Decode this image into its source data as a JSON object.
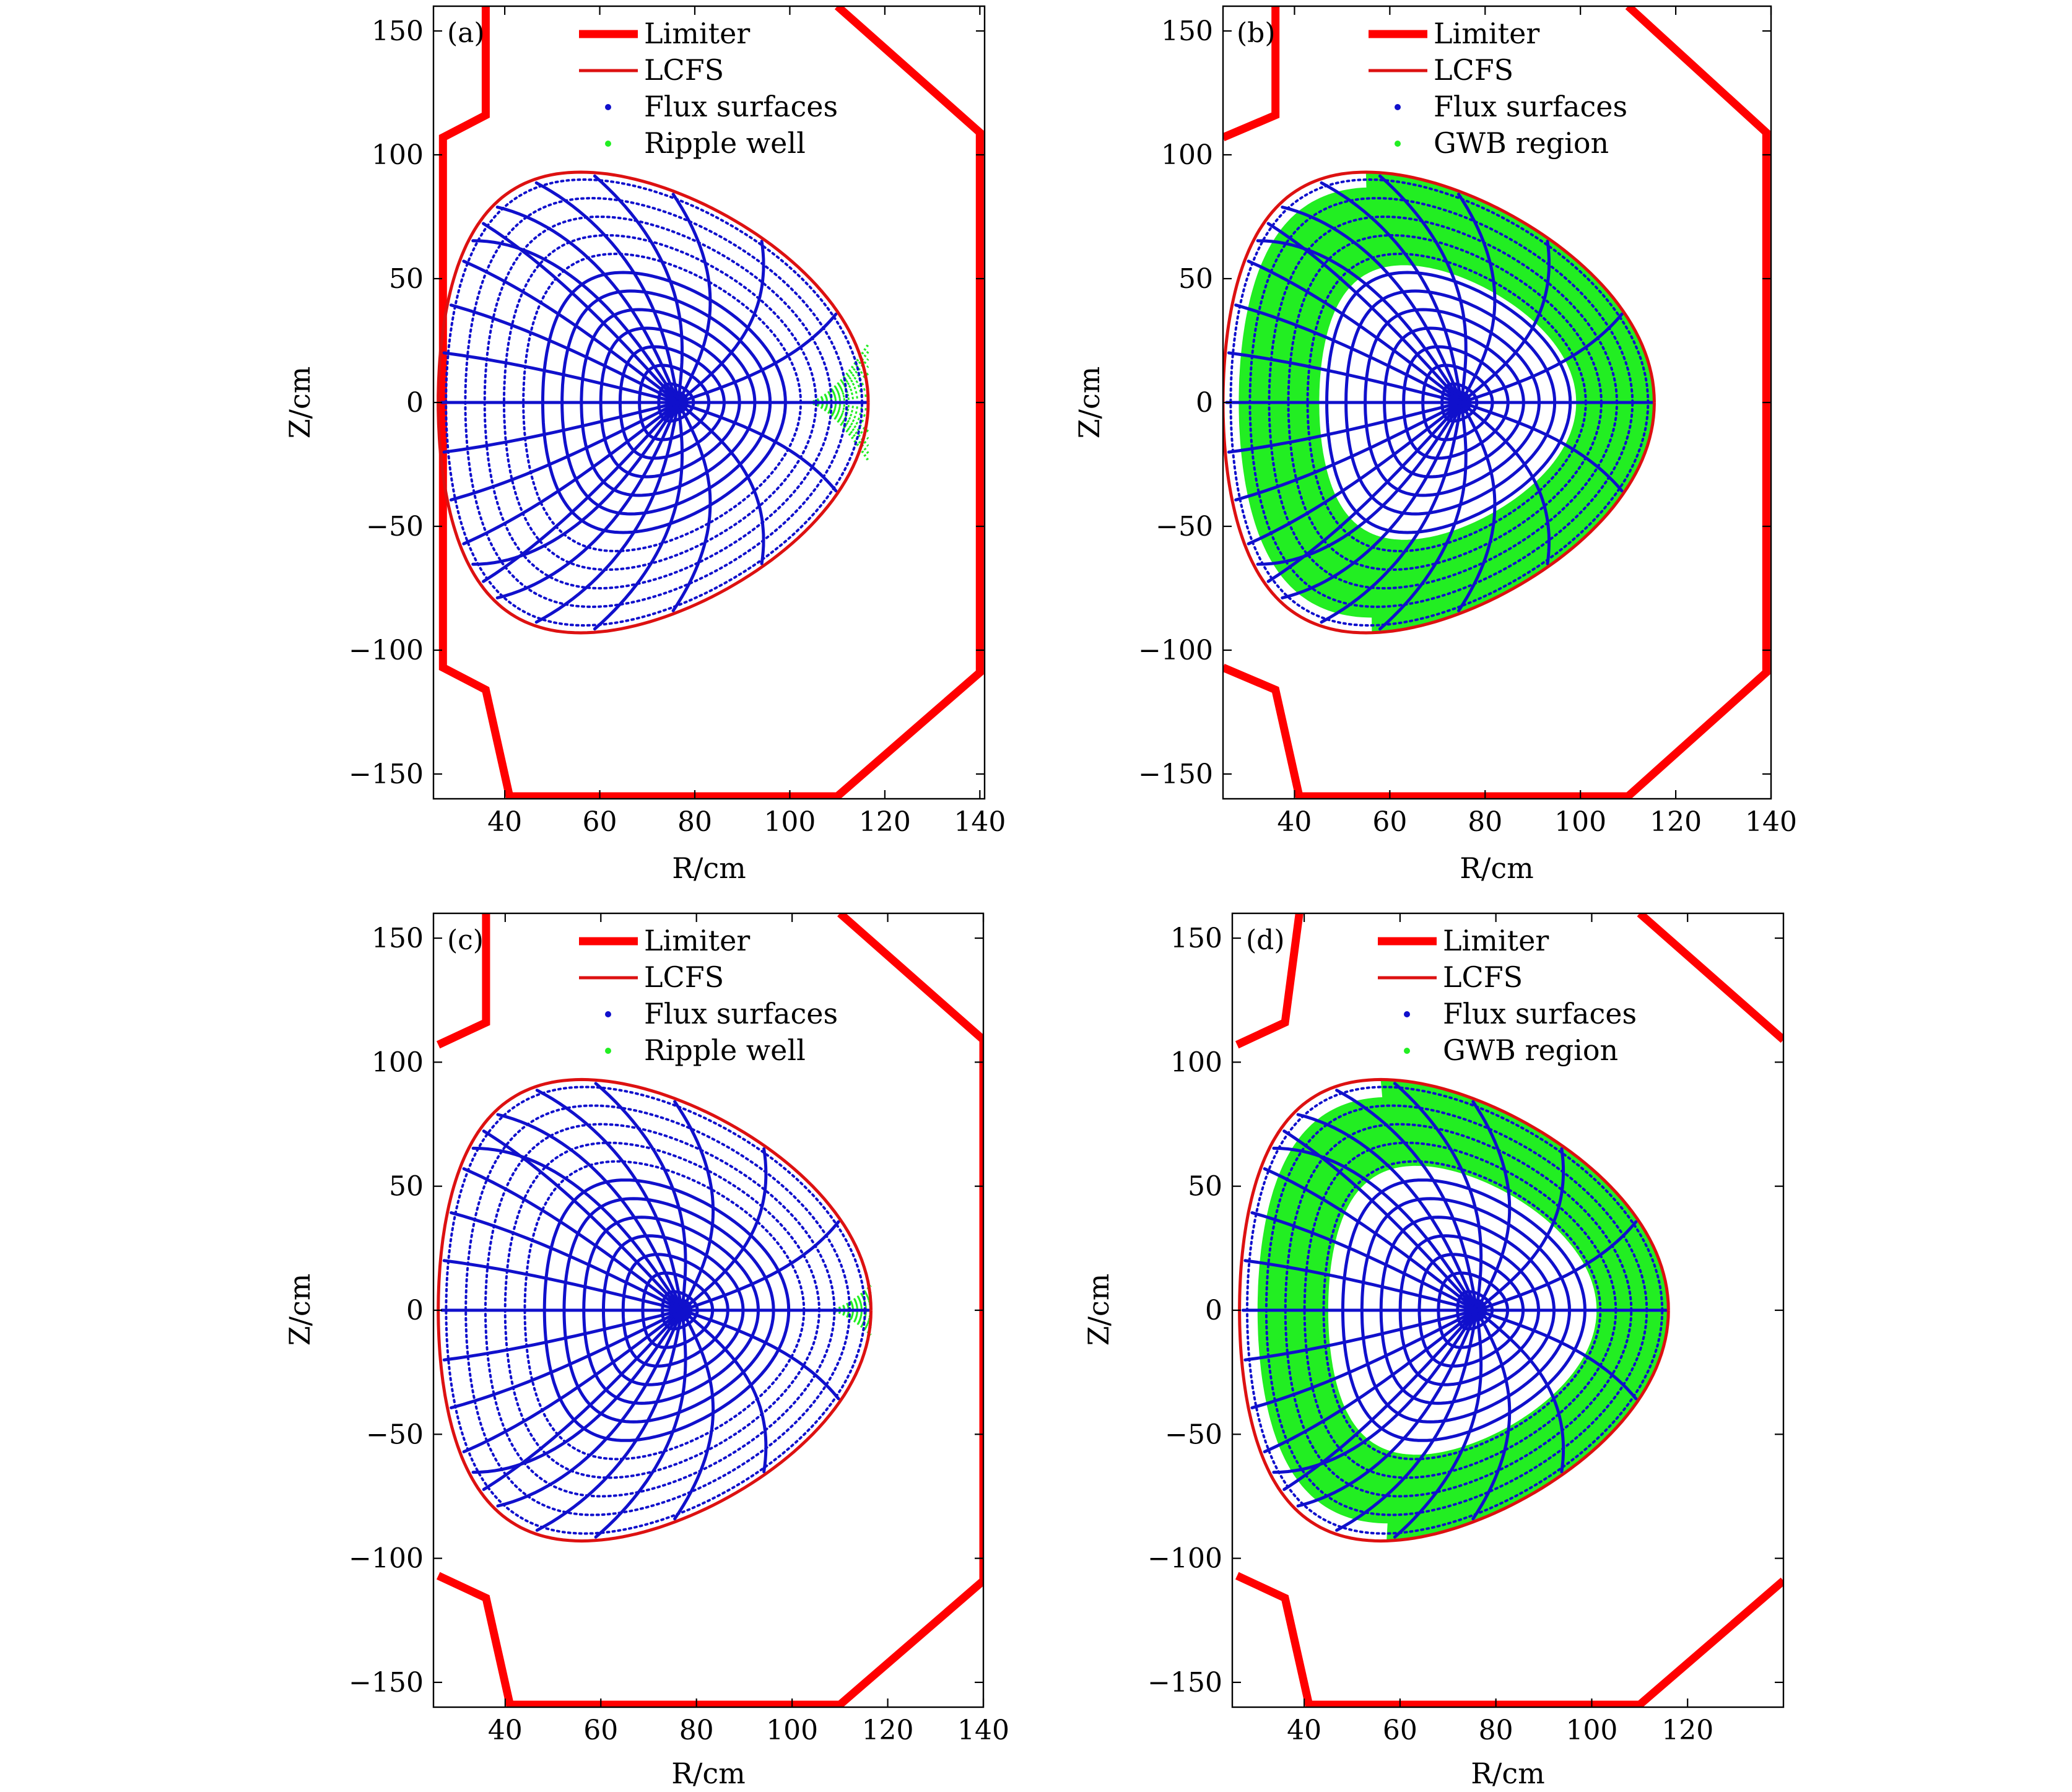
{
  "colors": {
    "limiter": "#ff0000",
    "lcfs": "#dd1111",
    "flux_surfaces": "#1010cc",
    "ripple_well": "#22ee22",
    "gwb_region": "#22ee22"
  },
  "chart_data": [
    {
      "type": "scatter",
      "panel_label": "(a)",
      "xlabel": "R/cm",
      "ylabel": "Z/cm",
      "xlim": [
        25,
        141
      ],
      "ylim": [
        -160,
        160
      ],
      "xticks": [
        40,
        60,
        80,
        100,
        120,
        140
      ],
      "yticks": [
        -150,
        -100,
        -50,
        0,
        50,
        100,
        150
      ],
      "legend_position": "top-center",
      "legend": [
        "Limiter",
        "LCFS",
        "Flux surfaces",
        "Ripple well"
      ],
      "axis_center": {
        "R": 76.5,
        "Z": 0
      },
      "lcfs": {
        "R_in": 26,
        "R_out": 116.5,
        "R_top": 56,
        "Z_top": 93
      },
      "limiter": [
        [
          [
            36,
            160
          ],
          [
            36,
            116
          ],
          [
            27,
            107
          ],
          [
            27,
            -107
          ],
          [
            36,
            -116
          ],
          [
            41,
            -159
          ],
          [
            110,
            -159
          ],
          [
            140,
            -109
          ],
          [
            140,
            109
          ],
          [
            110,
            160
          ]
        ]
      ],
      "green": {
        "type": "ripple",
        "R_from": 104,
        "Z_half_height": 26
      },
      "n_flux_surfaces": 12,
      "n_radial_rays": 24
    },
    {
      "type": "scatter",
      "panel_label": "(b)",
      "xlabel": "R/cm",
      "ylabel": "Z/cm",
      "xlim": [
        25,
        140
      ],
      "ylim": [
        -160,
        160
      ],
      "xticks": [
        40,
        60,
        80,
        100,
        120,
        140
      ],
      "yticks": [
        -150,
        -100,
        -50,
        0,
        50,
        100,
        150
      ],
      "legend_position": "top-center",
      "legend": [
        "Limiter",
        "LCFS",
        "Flux surfaces",
        "GWB region"
      ],
      "axis_center": {
        "R": 75,
        "Z": 0
      },
      "lcfs": {
        "R_in": 25,
        "R_out": 115.5,
        "R_top": 55,
        "Z_top": 93
      },
      "limiter": [
        [
          [
            36,
            160
          ],
          [
            36,
            116
          ],
          [
            25,
            107
          ]
        ],
        [
          [
            25,
            -107
          ],
          [
            36,
            -116
          ],
          [
            41,
            -159
          ],
          [
            110,
            -159
          ],
          [
            139,
            -109
          ],
          [
            139,
            109
          ],
          [
            110,
            160
          ]
        ]
      ],
      "green": {
        "type": "gwb",
        "rho_in": 0.6,
        "rho_out": 0.93,
        "rho_out_far": 0.99
      },
      "n_flux_surfaces": 12,
      "n_radial_rays": 24
    },
    {
      "type": "scatter",
      "panel_label": "(c)",
      "xlabel": "R/cm",
      "ylabel": "Z/cm",
      "xlim": [
        25,
        140
      ],
      "ylim": [
        -160,
        160
      ],
      "xticks": [
        40,
        60,
        80,
        100,
        120,
        140
      ],
      "yticks": [
        -150,
        -100,
        -50,
        0,
        50,
        100,
        150
      ],
      "legend_position": "top-center",
      "legend": [
        "Limiter",
        "LCFS",
        "Flux surfaces",
        "Ripple well"
      ],
      "axis_center": {
        "R": 77,
        "Z": 0
      },
      "lcfs": {
        "R_in": 26,
        "R_out": 116.5,
        "R_top": 56,
        "Z_top": 93
      },
      "limiter": [
        [
          [
            36,
            160
          ],
          [
            36,
            116
          ],
          [
            26,
            107
          ]
        ],
        [
          [
            26,
            -107
          ],
          [
            36,
            -116
          ],
          [
            41,
            -159
          ],
          [
            110,
            -159
          ],
          [
            140,
            -109
          ],
          [
            140,
            109
          ],
          [
            110,
            160
          ]
        ]
      ],
      "green": {
        "type": "ripple",
        "R_from": 108,
        "Z_half_height": 11
      },
      "n_flux_surfaces": 12,
      "n_radial_rays": 24
    },
    {
      "type": "scatter",
      "panel_label": "(d)",
      "xlabel": "R/cm",
      "ylabel": "Z/cm",
      "xlim": [
        25,
        140
      ],
      "ylim": [
        -160,
        160
      ],
      "xticks": [
        40,
        60,
        80,
        100,
        120
      ],
      "yticks": [
        -150,
        -100,
        -50,
        0,
        50,
        100,
        150
      ],
      "legend_position": "top-center",
      "legend": [
        "Limiter",
        "LCFS",
        "Flux surfaces",
        "GWB region"
      ],
      "axis_center": {
        "R": 76,
        "Z": 0
      },
      "lcfs": {
        "R_in": 26.5,
        "R_out": 116,
        "R_top": 56,
        "Z_top": 93
      },
      "limiter": [
        [
          [
            39,
            160
          ],
          [
            36,
            116
          ],
          [
            26,
            107
          ]
        ],
        [
          [
            26,
            -107
          ],
          [
            36,
            -116
          ],
          [
            41,
            -159
          ],
          [
            110,
            -159
          ],
          [
            140,
            -109
          ]
        ],
        [
          [
            110,
            160
          ],
          [
            140,
            109
          ]
        ]
      ],
      "green": {
        "type": "gwb",
        "rho_in": 0.63,
        "rho_out": 0.92,
        "rho_out_far": 0.99
      },
      "n_flux_surfaces": 12,
      "n_radial_rays": 24
    }
  ]
}
